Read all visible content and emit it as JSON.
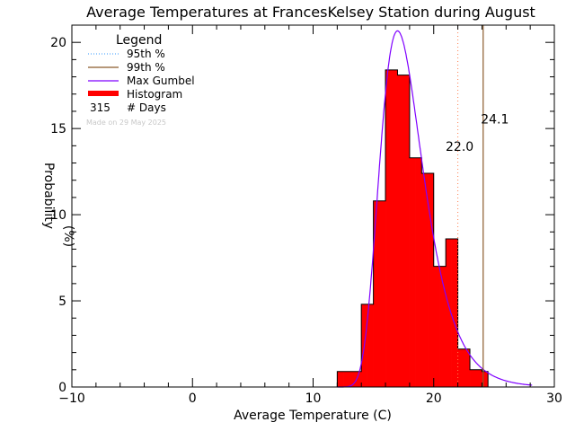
{
  "chart_data": {
    "type": "bar",
    "title": "Average Temperatures at FrancesKelsey Station during August",
    "xlabel": "Average Temperature (C)",
    "ylabel_top": "Probability",
    "ylabel_bottom": "(%)",
    "xlim": [
      -10,
      30
    ],
    "ylim": [
      0,
      21
    ],
    "x_ticks": [
      -10,
      0,
      10,
      20,
      30
    ],
    "y_ticks": [
      0,
      5,
      10,
      15,
      20
    ],
    "x_tick_labels": [
      "−10",
      "0",
      "10",
      "20",
      "30"
    ],
    "y_tick_labels": [
      "0",
      "5",
      "10",
      "15",
      "20"
    ],
    "histogram": {
      "bin_edges": [
        12,
        12.5,
        13,
        13.5,
        14,
        14.5,
        15,
        15.5,
        16,
        16.5,
        17,
        17.5,
        18,
        18.5,
        19,
        19.5,
        20,
        20.5,
        21,
        21.5,
        22,
        22.5,
        23,
        23.5,
        24,
        24.5
      ],
      "values": [
        0.9,
        0.9,
        0.9,
        0.9,
        4.8,
        4.8,
        10.8,
        10.8,
        18.4,
        18.4,
        18.1,
        18.1,
        13.3,
        13.3,
        12.4,
        12.4,
        7.0,
        7.0,
        8.6,
        8.6,
        2.2,
        2.2,
        1.0,
        1.0,
        0.9
      ],
      "color": "#ff0000"
    },
    "gumbel_fit": {
      "location": 17.0,
      "scale": 1.78,
      "color": "#7f00ff"
    },
    "percentile_95": {
      "value": 22.0,
      "label": "22.0",
      "color": "#ff7f50",
      "label_color": "#3a8fd8"
    },
    "percentile_99": {
      "value": 24.1,
      "label": "24.1",
      "color": "#8b5a2b",
      "label_color": "#b8601a"
    },
    "legend": {
      "title": "Legend",
      "items": [
        {
          "label": "95th %",
          "style": "dotted",
          "color": "#3399ff"
        },
        {
          "label": "99th %",
          "style": "solid",
          "color": "#8b5a2b"
        },
        {
          "label": "Max Gumbel",
          "style": "solid",
          "color": "#7f00ff"
        },
        {
          "label": "Histogram",
          "style": "thick",
          "color": "#ff0000"
        }
      ],
      "count_value": "315",
      "count_label": "# Days"
    },
    "watermark": "Made on 29 May 2025"
  }
}
